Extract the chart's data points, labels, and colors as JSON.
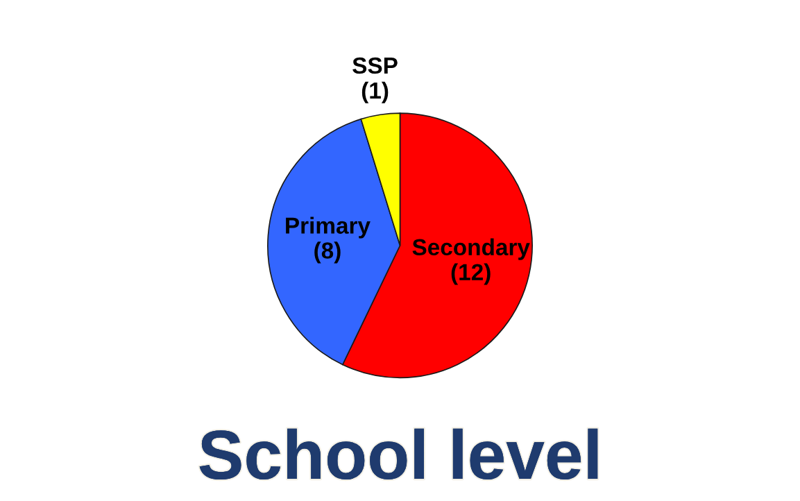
{
  "chart_data": {
    "type": "pie",
    "title": "School level",
    "categories": [
      "Secondary",
      "Primary",
      "SSP"
    ],
    "values": [
      12,
      8,
      1
    ],
    "value_labels": [
      "(12)",
      "(8)",
      "(1)"
    ],
    "colors": [
      "#ff0000",
      "#3366ff",
      "#ffff00"
    ]
  }
}
